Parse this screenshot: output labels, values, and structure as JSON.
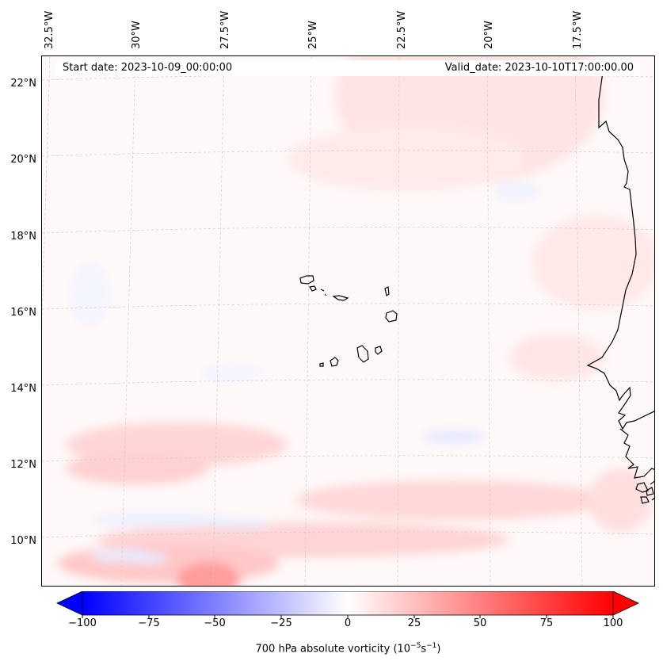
{
  "map": {
    "header_left": "Start date: 2023-10-09_00:00:00",
    "header_right": "Valid_date: 2023-10-10T17:00:00.00",
    "lon_labels": [
      "32.5°W",
      "30°W",
      "27.5°W",
      "25°W",
      "22.5°W",
      "20°W",
      "17.5°W"
    ],
    "lat_labels": [
      "22°N",
      "20°N",
      "18°N",
      "16°N",
      "14°N",
      "12°N",
      "10°N"
    ],
    "background_color": "#fff8f8",
    "coastline_color": "#000000",
    "gridline_color": "#cccccc"
  },
  "colorbar": {
    "label": "700 hPa absolute vorticity (10",
    "label_exp1": "−5",
    "label_mid": "s",
    "label_exp2": "−1",
    "label_end": ")",
    "ticks": [
      "−100",
      "−75",
      "−50",
      "−25",
      "0",
      "25",
      "50",
      "75",
      "100"
    ],
    "min": -100,
    "max": 100,
    "min_color": "#0000ff",
    "mid_color": "#ffffff",
    "max_color": "#ff0000"
  }
}
